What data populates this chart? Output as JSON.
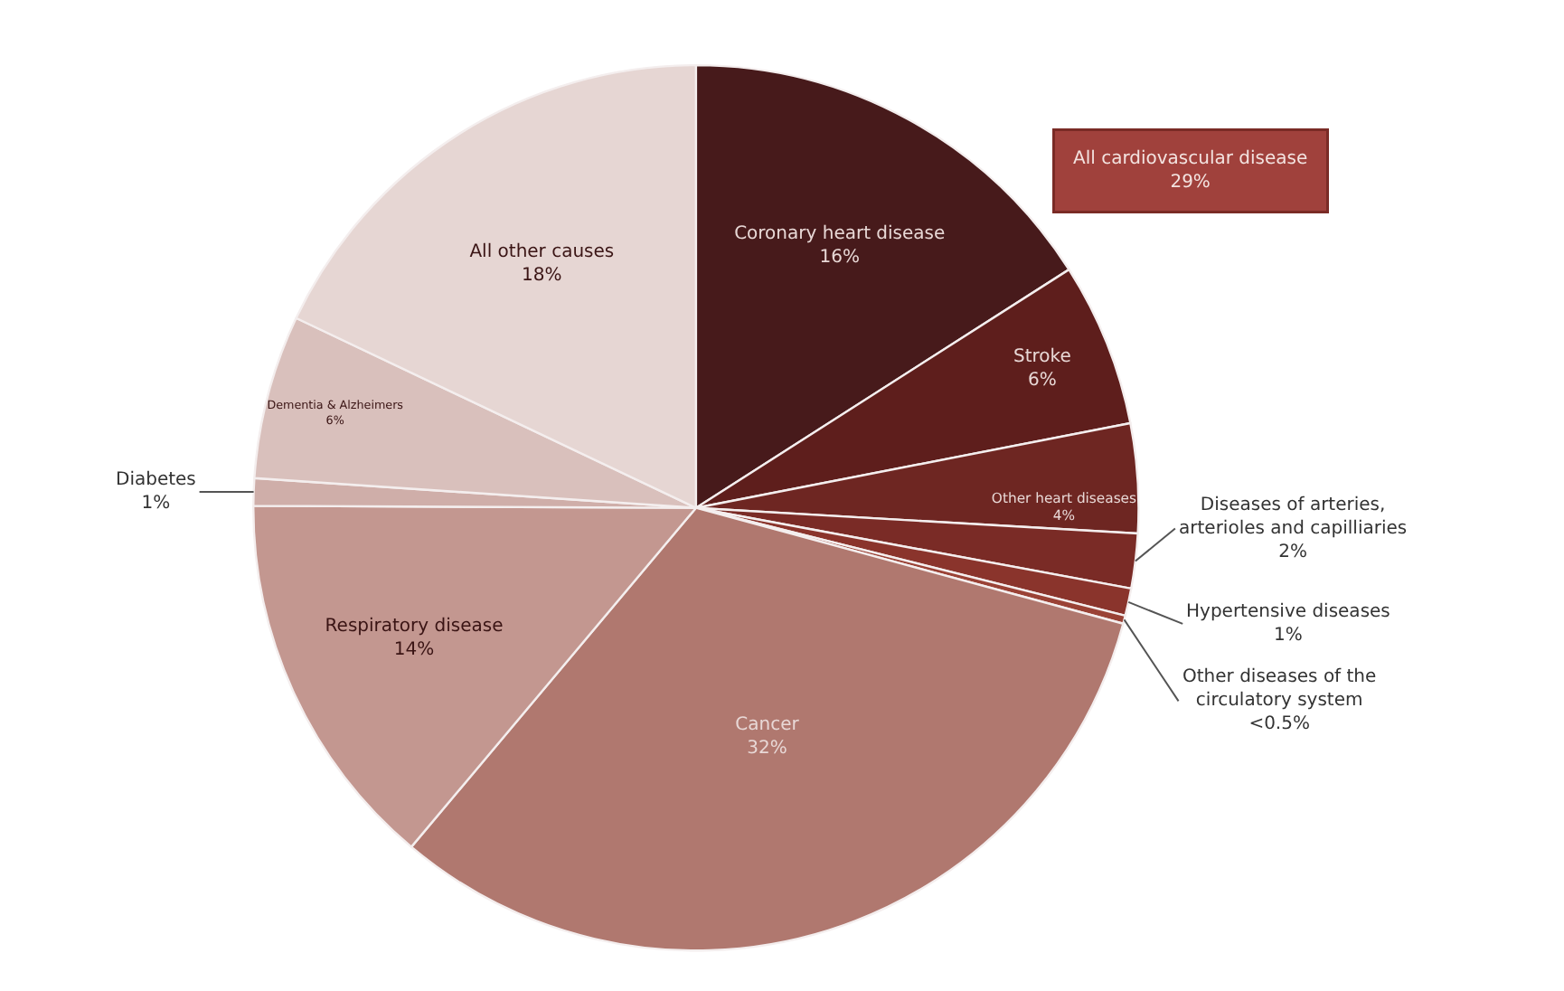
{
  "chart_data": {
    "type": "pie",
    "categories": [
      "Coronary heart disease",
      "Stroke",
      "Other heart diseases",
      "Diseases of arteries, arterioles and capilliaries",
      "Hypertensive diseases",
      "Other diseases of the circulatory system",
      "Cancer",
      "Respiratory disease",
      "Diabetes",
      "Dementia & Alzheimers",
      "All other causes"
    ],
    "values": [
      16,
      6,
      4,
      2,
      1,
      0.3,
      32,
      14,
      1,
      6,
      18
    ],
    "value_labels": [
      "16%",
      "6%",
      "4%",
      "2%",
      "1%",
      "<0.5%",
      "32%",
      "14%",
      "1%",
      "6%",
      "18%"
    ],
    "colors": [
      "#471a1b",
      "#5e1e1c",
      "#6e2622",
      "#7a2b26",
      "#8a342c",
      "#9a4236",
      "#b0786f",
      "#c39790",
      "#cfaea9",
      "#d9c0bc",
      "#e6d6d3"
    ],
    "annotations": [
      "All cardiovascular disease\n29%"
    ],
    "legend": false
  }
}
